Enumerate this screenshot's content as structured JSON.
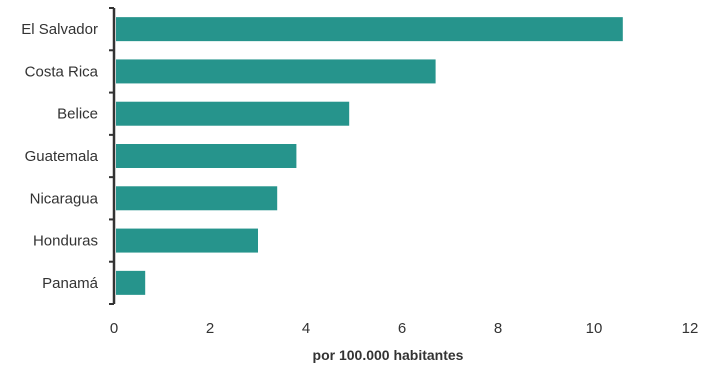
{
  "chart_data": {
    "type": "bar",
    "orientation": "horizontal",
    "categories": [
      "El Salvador",
      "Costa Rica",
      "Belice",
      "Guatemala",
      "Nicaragua",
      "Honduras",
      "Panamá"
    ],
    "values": [
      10.6,
      6.7,
      4.9,
      3.8,
      3.4,
      3.0,
      0.65
    ],
    "title": "",
    "xlabel": "por 100.000 habitantes",
    "ylabel": "",
    "xlim": [
      0,
      12
    ],
    "xticks": [
      "0",
      "2",
      "4",
      "6",
      "8",
      "10",
      "12"
    ],
    "grid": false,
    "legend": "none",
    "bar_color": "#26948C",
    "axis_color": "#333333"
  }
}
